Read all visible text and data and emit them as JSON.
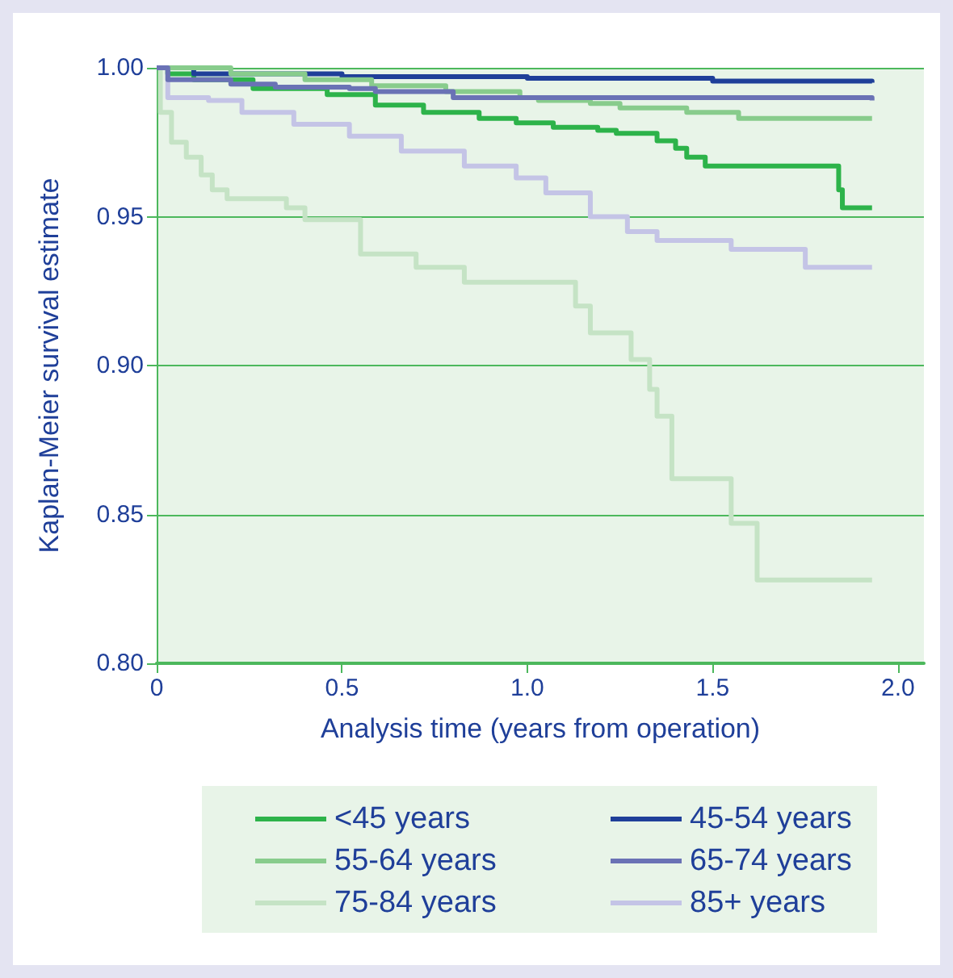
{
  "chart_data": {
    "type": "step",
    "xlabel": "Analysis time (years from operation)",
    "ylabel": "Kaplan-Meier survival estimate",
    "xlim": [
      0,
      2.07
    ],
    "xticks": [
      0,
      0.5,
      {
        "value": 1,
        "label": "1.0"
      },
      1.5,
      {
        "value": 2,
        "label": "2.0"
      }
    ],
    "ylim": [
      0.8,
      1.0
    ],
    "yticks": [
      {
        "value": 0.8,
        "label": "0.80"
      },
      0.85,
      {
        "value": 0.9,
        "label": "0.90"
      },
      0.95,
      {
        "value": 1.0,
        "label": "1.00"
      }
    ],
    "grid": "y",
    "legend": "bottom",
    "line_style": "solid",
    "marker": "none",
    "series": [
      {
        "name": "<45 years",
        "color": "#2db34a",
        "x": [
          0,
          0.03,
          0.1,
          0.26,
          0.46,
          0.59,
          0.72,
          0.87,
          0.97,
          1.07,
          1.19,
          1.24,
          1.35,
          1.4,
          1.43,
          1.48,
          1.84,
          1.85,
          1.93
        ],
        "values": [
          1.0,
          0.998,
          0.996,
          0.993,
          0.991,
          0.9875,
          0.985,
          0.983,
          0.9815,
          0.98,
          0.979,
          0.978,
          0.9755,
          0.973,
          0.97,
          0.967,
          0.959,
          0.953,
          0.953
        ]
      },
      {
        "name": "45-54 years",
        "color": "#1f3f99",
        "x": [
          0,
          0.1,
          0.5,
          1.0,
          1.5,
          1.93
        ],
        "values": [
          1.0,
          0.998,
          0.997,
          0.9965,
          0.9955,
          0.995
        ]
      },
      {
        "name": "55-64 years",
        "color": "#88cc8c",
        "x": [
          0,
          0.2,
          0.4,
          0.58,
          0.78,
          0.98,
          1.03,
          1.17,
          1.25,
          1.43,
          1.57,
          1.93
        ],
        "values": [
          1.0,
          0.998,
          0.996,
          0.994,
          0.992,
          0.99,
          0.989,
          0.988,
          0.9865,
          0.985,
          0.983,
          0.983
        ]
      },
      {
        "name": "65-74 years",
        "color": "#6a72b5",
        "x": [
          0,
          0.03,
          0.2,
          0.32,
          0.52,
          0.59,
          0.8,
          1.93
        ],
        "values": [
          1.0,
          0.996,
          0.9945,
          0.9935,
          0.993,
          0.992,
          0.99,
          0.989
        ]
      },
      {
        "name": "75-84 years",
        "color": "#c5e3c5",
        "x": [
          0,
          0.01,
          0.04,
          0.08,
          0.12,
          0.15,
          0.19,
          0.35,
          0.4,
          0.55,
          0.7,
          0.83,
          1.13,
          1.17,
          1.28,
          1.33,
          1.35,
          1.39,
          1.55,
          1.62,
          1.93
        ],
        "values": [
          1.0,
          0.985,
          0.975,
          0.97,
          0.964,
          0.959,
          0.956,
          0.953,
          0.949,
          0.9375,
          0.933,
          0.928,
          0.92,
          0.911,
          0.902,
          0.892,
          0.883,
          0.862,
          0.847,
          0.828,
          0.828
        ]
      },
      {
        "name": "85+ years",
        "color": "#c4c4e6",
        "x": [
          0,
          0.03,
          0.14,
          0.23,
          0.37,
          0.52,
          0.66,
          0.83,
          0.97,
          1.05,
          1.17,
          1.27,
          1.35,
          1.55,
          1.75,
          1.93
        ],
        "values": [
          1.0,
          0.99,
          0.989,
          0.985,
          0.981,
          0.977,
          0.972,
          0.967,
          0.963,
          0.958,
          0.95,
          0.945,
          0.942,
          0.939,
          0.933,
          0.933
        ]
      }
    ]
  }
}
